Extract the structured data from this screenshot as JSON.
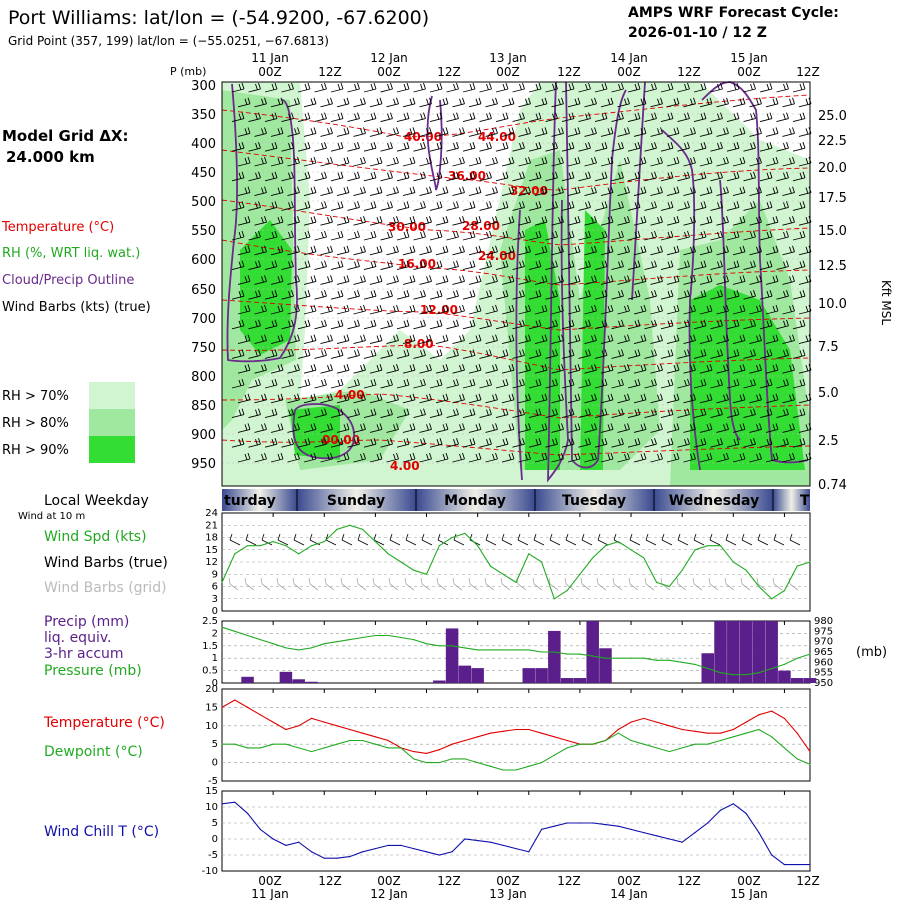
{
  "header": {
    "title": "Port Williams:  lat/lon = (-54.9200, -67.6200)",
    "subtitle": "Grid Point (357, 199) lat/lon = (−55.0251, −67.6813)",
    "cycle_label": "AMPS WRF Forecast Cycle:",
    "cycle_value": "2026-01-10 / 12  Z",
    "model_grid_label": "Model Grid ΔX:",
    "model_grid_value": "24.000 km",
    "p_label": "P (mb)"
  },
  "time_axis": {
    "hour_labels": [
      "00Z",
      "12Z",
      "00Z",
      "12Z",
      "00Z",
      "12Z",
      "00Z",
      "12Z",
      "00Z",
      "12Z"
    ],
    "date_labels": [
      "11 Jan",
      "12 Jan",
      "13 Jan",
      "14 Jan",
      "15 Jan"
    ]
  },
  "weekday_strip": {
    "label": "Local Weekday",
    "sublabel": "Wind at 10 m",
    "days": [
      "turday",
      "Sunday",
      "Monday",
      "Tuesday",
      "Wednesday",
      "T"
    ]
  },
  "legend": {
    "temperature": "Temperature (°C)",
    "rh": "RH (%, WRT liq. wat.)",
    "cloud": "Cloud/Precip Outline",
    "wind": "Wind Barbs (kts) (true)",
    "rh_levels": [
      "RH > 70%",
      "RH > 80%",
      "RH > 90%"
    ],
    "kft_label": "Kft MSL"
  },
  "colors": {
    "temperature": "#e00000",
    "rh70": "#d0f5d0",
    "rh80": "#a0e8a0",
    "rh90": "#33dd33",
    "cloud": "#6a2b8a",
    "precip_bar": "#5a1f8a",
    "pressure": "#22aa22",
    "windchill": "#1010aa",
    "weekday_dark": "#3a4a90",
    "weekday_light": "#f0f0e8"
  },
  "cross_section": {
    "pressure_ticks": [
      "300",
      "350",
      "400",
      "450",
      "500",
      "550",
      "600",
      "650",
      "700",
      "750",
      "800",
      "850",
      "900",
      "950"
    ],
    "kft_ticks": [
      "25.0",
      "22.5",
      "20.0",
      "17.5",
      "15.0",
      "12.5",
      "10.0",
      "7.5",
      "5.0",
      "2.5",
      "0.74"
    ],
    "temperature_labels": [
      "40.00",
      "44.00",
      "36.00",
      "32.00",
      "30.00",
      "28.00",
      "24.00",
      "16.00",
      "12.00",
      "8.00",
      "4.00",
      "00.00",
      "4.00"
    ]
  },
  "panel_labels": {
    "wind_spd": "Wind Spd (kts)",
    "wind_barbs_true": "Wind Barbs (true)",
    "wind_barbs_grid": "Wind Barbs (grid)",
    "precip": "Precip (mm)",
    "precip_2": "liq. equiv.",
    "precip_3": "3-hr accum",
    "pressure": "Pressure (mb)",
    "pressure_unit": "(mb)",
    "temperature": "Temperature (°C)",
    "dewpoint": "Dewpoint (°C)",
    "windchill": "Wind Chill T (°C)"
  },
  "chart_data": [
    {
      "type": "line",
      "name": "wind_speed",
      "x_hours": [
        0,
        3,
        6,
        9,
        12,
        15,
        18,
        21,
        24,
        27,
        30,
        33,
        36,
        39,
        42,
        45,
        48,
        51,
        54,
        57,
        60,
        63,
        66,
        69,
        72,
        75,
        78,
        81,
        84,
        87,
        90,
        93,
        96,
        99,
        102,
        105,
        108,
        111,
        114,
        117,
        120,
        123,
        126,
        129,
        132,
        135,
        138
      ],
      "y_ticks": [
        "24",
        "21",
        "18",
        "15",
        "12",
        "9",
        "6",
        "3",
        "0"
      ],
      "ylim": [
        0,
        24
      ],
      "series": [
        {
          "values": [
            7,
            14,
            16,
            16,
            17,
            16,
            14,
            16,
            17,
            20,
            21,
            20,
            17,
            14,
            12,
            10,
            9,
            16,
            18,
            19,
            16,
            11,
            9,
            7,
            14,
            12,
            3,
            5,
            9,
            13,
            16,
            17,
            15,
            13,
            7,
            6,
            10,
            15,
            16,
            16,
            12,
            10,
            6,
            3,
            5,
            11,
            12
          ]
        }
      ]
    },
    {
      "type": "bar",
      "name": "precip_pressure",
      "x_hours": [
        0,
        3,
        6,
        9,
        12,
        15,
        18,
        21,
        24,
        27,
        30,
        33,
        36,
        39,
        42,
        45,
        48,
        51,
        54,
        57,
        60,
        63,
        66,
        69,
        72,
        75,
        78,
        81,
        84,
        87,
        90,
        93,
        96,
        99,
        102,
        105,
        108,
        111,
        114,
        117,
        120,
        123,
        126,
        129,
        132,
        135,
        138
      ],
      "y_ticks": [
        "2.5",
        "2",
        "1.5",
        "1",
        "0.5",
        "0"
      ],
      "y2_ticks": [
        "980",
        "975",
        "970",
        "965",
        "960",
        "955",
        "950"
      ],
      "ylim": [
        0,
        2.5
      ],
      "y2lim": [
        950,
        980
      ],
      "series": [
        {
          "name": "precip",
          "values": [
            0,
            0,
            0.25,
            0,
            0,
            0.45,
            0.15,
            0.05,
            0,
            0,
            0,
            0,
            0,
            0,
            0,
            0,
            0,
            0.1,
            2.2,
            0.7,
            0.6,
            0,
            0,
            0,
            0.6,
            0.6,
            2.1,
            0.2,
            0.2,
            2.5,
            1.4,
            0,
            0,
            0,
            0,
            0,
            0,
            0,
            1.2,
            2.5,
            2.5,
            2.5,
            2.5,
            2.5,
            0.5,
            0.2,
            0.2
          ]
        },
        {
          "name": "pressure",
          "values": [
            977,
            975,
            973,
            971,
            969,
            967,
            966,
            967,
            969,
            970,
            971,
            972,
            973,
            973,
            972,
            971,
            969,
            968,
            968,
            967,
            966,
            966,
            966,
            966,
            966,
            965,
            965,
            964,
            964,
            963,
            962,
            962,
            962,
            962,
            961,
            961,
            960,
            959,
            957,
            955,
            954,
            954,
            955,
            957,
            959,
            962,
            964
          ]
        }
      ]
    },
    {
      "type": "line",
      "name": "temperature_dewpoint",
      "x_hours": [
        0,
        3,
        6,
        9,
        12,
        15,
        18,
        21,
        24,
        27,
        30,
        33,
        36,
        39,
        42,
        45,
        48,
        51,
        54,
        57,
        60,
        63,
        66,
        69,
        72,
        75,
        78,
        81,
        84,
        87,
        90,
        93,
        96,
        99,
        102,
        105,
        108,
        111,
        114,
        117,
        120,
        123,
        126,
        129,
        132,
        135,
        138
      ],
      "y_ticks": [
        "20",
        "15",
        "10",
        "5",
        "0",
        "-5"
      ],
      "ylim": [
        -5,
        20
      ],
      "series": [
        {
          "name": "temperature",
          "values": [
            15,
            17,
            15,
            13,
            11,
            9,
            10,
            12,
            11,
            10,
            9,
            8,
            7,
            6,
            4,
            3,
            2.5,
            3.5,
            5,
            6,
            7,
            8,
            8.5,
            9,
            9,
            8,
            7,
            6,
            5,
            5,
            6,
            9,
            11,
            12,
            11,
            10,
            9,
            8.5,
            8,
            8,
            9,
            11,
            13,
            14,
            12,
            8,
            3
          ]
        },
        {
          "name": "dewpoint",
          "values": [
            5,
            5,
            4,
            4,
            5,
            5,
            4,
            3,
            4,
            5,
            6,
            6,
            5,
            4,
            4,
            1,
            0,
            0,
            1,
            1,
            0,
            -1,
            -2,
            -2,
            -1,
            0,
            2,
            4,
            5,
            5,
            6,
            8,
            6,
            5,
            4,
            3,
            4,
            5,
            5,
            6,
            7,
            8,
            9,
            7,
            4,
            1,
            -0.5
          ]
        }
      ]
    },
    {
      "type": "line",
      "name": "wind_chill",
      "x_hours": [
        0,
        3,
        6,
        9,
        12,
        15,
        18,
        21,
        24,
        27,
        30,
        33,
        36,
        39,
        42,
        45,
        48,
        51,
        54,
        57,
        60,
        63,
        66,
        69,
        72,
        75,
        78,
        81,
        84,
        87,
        90,
        93,
        96,
        99,
        102,
        105,
        108,
        111,
        114,
        117,
        120,
        123,
        126,
        129,
        132,
        135,
        138
      ],
      "y_ticks": [
        "15",
        "10",
        "5",
        "0",
        "-5",
        "-10"
      ],
      "ylim": [
        -10,
        15
      ],
      "series": [
        {
          "name": "windchill",
          "values": [
            11,
            11.5,
            8,
            3,
            0,
            -2,
            -1,
            -4,
            -6,
            -6,
            -5.5,
            -4,
            -3,
            -2,
            -2,
            -3,
            -4,
            -5,
            -4,
            0,
            -0.5,
            -1,
            -2,
            -3,
            -4,
            3,
            4,
            5,
            5,
            5,
            4.5,
            4,
            3,
            2,
            1,
            0,
            -1,
            2,
            5,
            9,
            11,
            8,
            2,
            -5,
            -8,
            -8,
            -8
          ]
        }
      ]
    }
  ]
}
